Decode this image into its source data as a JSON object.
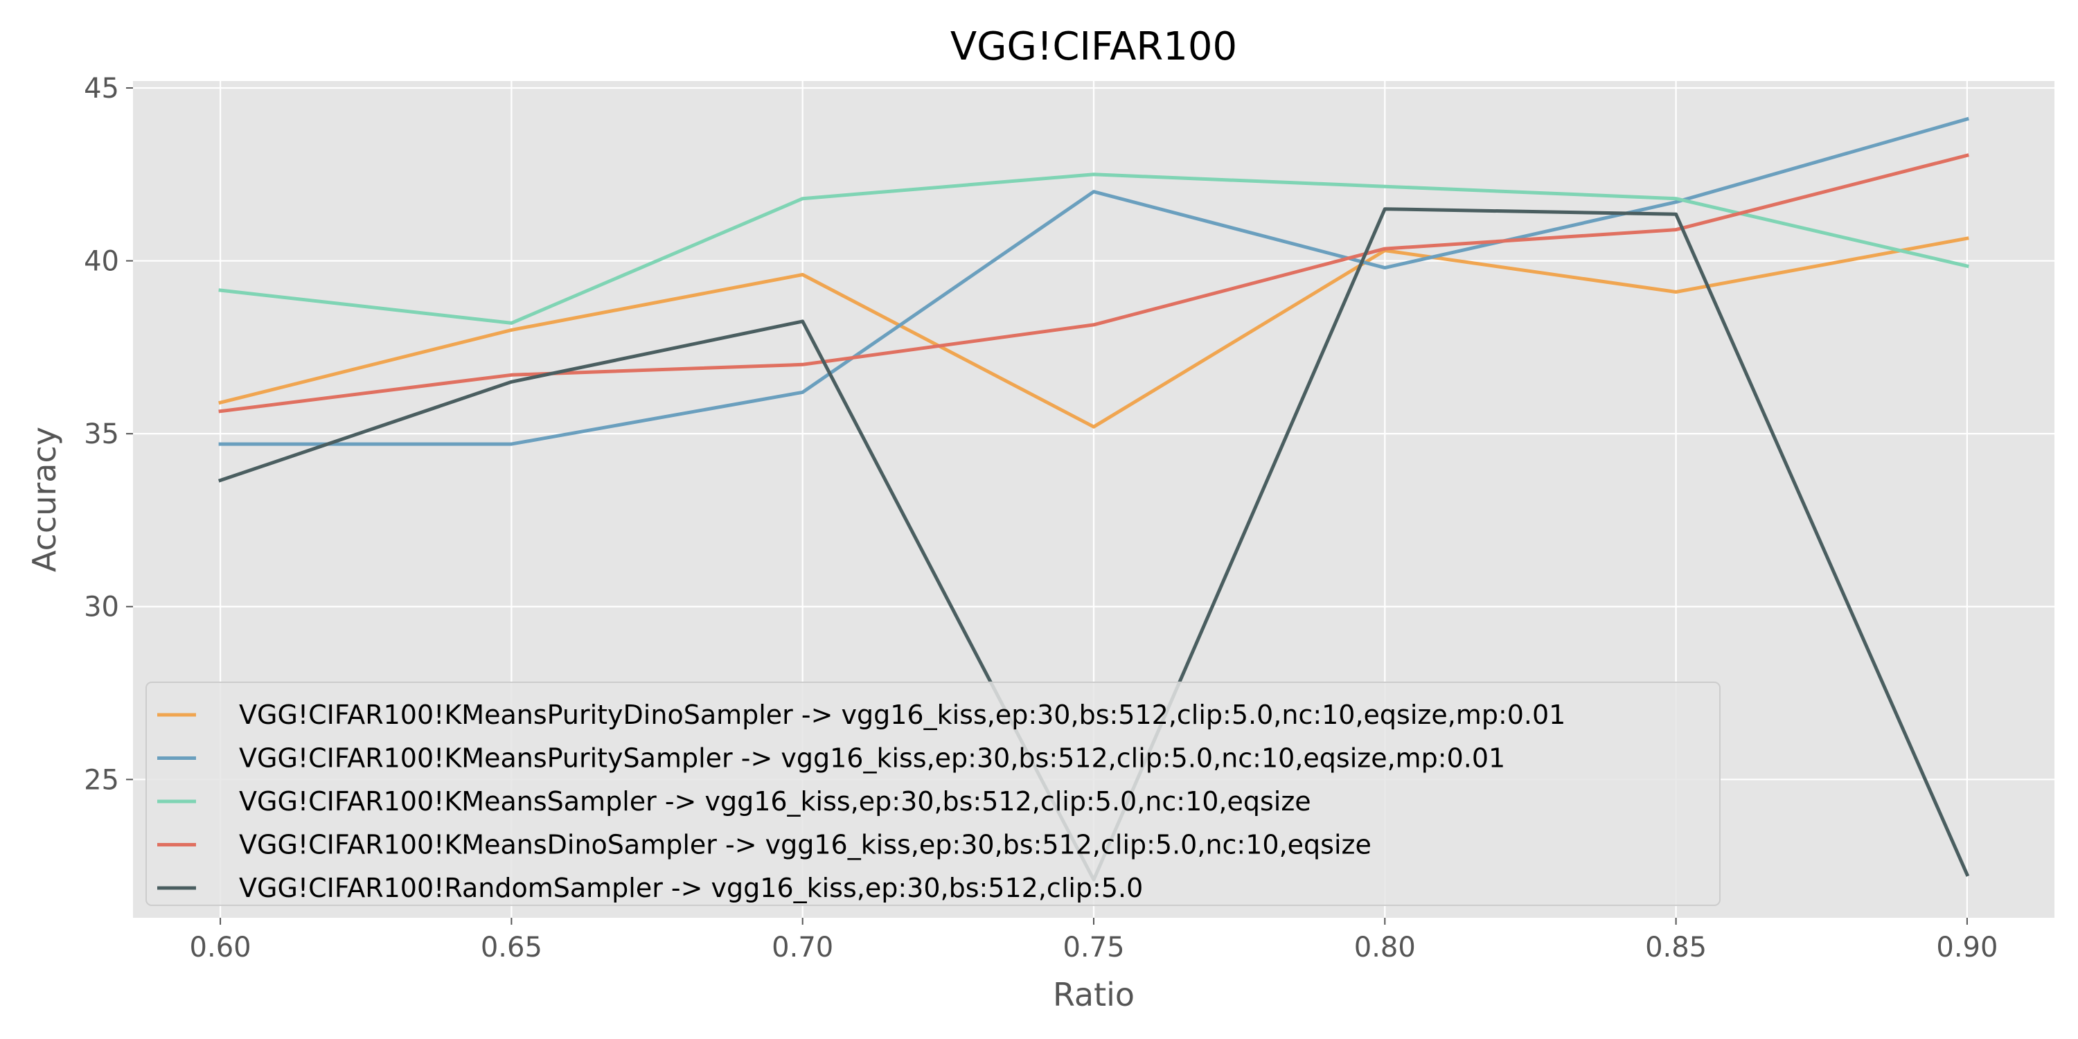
{
  "chart_data": {
    "type": "line",
    "title": "VGG!CIFAR100",
    "xlabel": "Ratio",
    "ylabel": "Accuracy",
    "x": [
      0.6,
      0.65,
      0.7,
      0.75,
      0.8,
      0.85,
      0.9
    ],
    "x_tick_labels": [
      "0.60",
      "0.65",
      "0.70",
      "0.75",
      "0.80",
      "0.85",
      "0.90"
    ],
    "y_ticks": [
      25,
      30,
      35,
      40,
      45
    ],
    "y_tick_labels": [
      "25",
      "30",
      "35",
      "40",
      "45"
    ],
    "xlim": [
      0.585,
      0.915
    ],
    "ylim": [
      21.0,
      45.2
    ],
    "grid": true,
    "legend_position": "lower-left",
    "series": [
      {
        "name": "VGG!CIFAR100!KMeansPurityDinoSampler ->  vgg16_kiss,ep:30,bs:512,clip:5.0,nc:10,eqsize,mp:0.01",
        "color": "#f0a550",
        "values": [
          35.9,
          38.0,
          39.6,
          35.2,
          40.3,
          39.1,
          40.65
        ]
      },
      {
        "name": "VGG!CIFAR100!KMeansPuritySampler ->  vgg16_kiss,ep:30,bs:512,clip:5.0,nc:10,eqsize,mp:0.01",
        "color": "#6a9fbe",
        "values": [
          34.7,
          34.7,
          36.2,
          42.0,
          39.8,
          41.7,
          44.1
        ]
      },
      {
        "name": "VGG!CIFAR100!KMeansSampler ->  vgg16_kiss,ep:30,bs:512,clip:5.0,nc:10,eqsize",
        "color": "#7fd4b4",
        "values": [
          39.15,
          38.2,
          41.8,
          42.5,
          42.15,
          41.8,
          39.85
        ]
      },
      {
        "name": "VGG!CIFAR100!KMeansDinoSampler ->  vgg16_kiss,ep:30,bs:512,clip:5.0,nc:10,eqsize",
        "color": "#e07060",
        "values": [
          35.65,
          36.7,
          37.0,
          38.15,
          40.35,
          40.9,
          43.05
        ]
      },
      {
        "name": "VGG!CIFAR100!RandomSampler ->  vgg16_kiss,ep:30,bs:512,clip:5.0",
        "color": "#4a5e60",
        "values": [
          33.65,
          36.5,
          38.25,
          22.1,
          41.5,
          41.35,
          22.25
        ]
      }
    ]
  },
  "colors": {
    "plot_background": "#e5e5e5",
    "grid": "#ffffff",
    "legend_background": "#e5e5e5",
    "legend_border": "#cccccc"
  }
}
